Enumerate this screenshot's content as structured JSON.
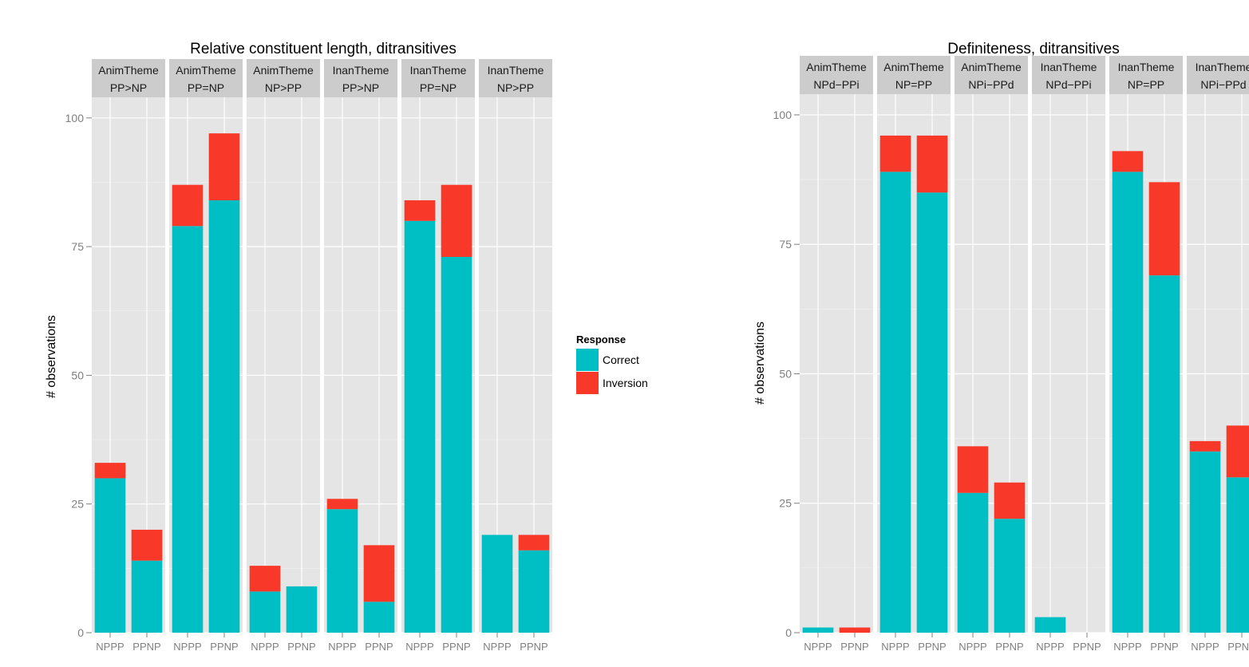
{
  "colors": {
    "correct": "#00BFC4",
    "inversion": "#F8392A",
    "panel_bg": "#E5E5E5",
    "strip_bg": "#CCCCCC",
    "grid": "#F2F2F2",
    "tick_text": "#7F7F7F"
  },
  "chart_data": [
    {
      "type": "bar",
      "stacked": true,
      "title": "Relative constituent length, ditransitives",
      "ylabel": "# observations",
      "xlabel": "",
      "ylim": [
        0,
        104
      ],
      "yticks": [
        0,
        25,
        50,
        75,
        100
      ],
      "x_tick_labels": [
        "NPPP",
        "PPNP"
      ],
      "series_names": [
        "Correct",
        "Inversion"
      ],
      "legend": {
        "title": "Response",
        "entries": [
          "Correct",
          "Inversion"
        ],
        "placement": "right"
      },
      "panels": [
        {
          "strip": [
            "AnimTheme",
            "PP>NP"
          ],
          "categories": [
            "NPPP",
            "PPNP"
          ],
          "correct": [
            30,
            14
          ],
          "inversion": [
            3,
            6
          ]
        },
        {
          "strip": [
            "AnimTheme",
            "PP=NP"
          ],
          "categories": [
            "NPPP",
            "PPNP"
          ],
          "correct": [
            79,
            84
          ],
          "inversion": [
            8,
            13
          ]
        },
        {
          "strip": [
            "AnimTheme",
            "NP>PP"
          ],
          "categories": [
            "NPPP",
            "PPNP"
          ],
          "correct": [
            8,
            9
          ],
          "inversion": [
            5,
            0
          ]
        },
        {
          "strip": [
            "InanTheme",
            "PP>NP"
          ],
          "categories": [
            "NPPP",
            "PPNP"
          ],
          "correct": [
            24,
            6
          ],
          "inversion": [
            2,
            11
          ]
        },
        {
          "strip": [
            "InanTheme",
            "PP=NP"
          ],
          "categories": [
            "NPPP",
            "PPNP"
          ],
          "correct": [
            80,
            73
          ],
          "inversion": [
            4,
            14
          ]
        },
        {
          "strip": [
            "InanTheme",
            "NP>PP"
          ],
          "categories": [
            "NPPP",
            "PPNP"
          ],
          "correct": [
            19,
            16
          ],
          "inversion": [
            0,
            3
          ]
        }
      ]
    },
    {
      "type": "bar",
      "stacked": true,
      "title": "Definiteness, ditransitives",
      "ylabel": "# observations",
      "xlabel": "",
      "ylim": [
        0,
        104
      ],
      "yticks": [
        0,
        25,
        50,
        75,
        100
      ],
      "x_tick_labels": [
        "NPPP",
        "PPNP"
      ],
      "series_names": [
        "Correct",
        "Inversion"
      ],
      "panels": [
        {
          "strip": [
            "AnimTheme",
            "NPd−PPi"
          ],
          "categories": [
            "NPPP",
            "PPNP"
          ],
          "correct": [
            1,
            0
          ],
          "inversion": [
            0,
            1
          ]
        },
        {
          "strip": [
            "AnimTheme",
            "NP=PP"
          ],
          "categories": [
            "NPPP",
            "PPNP"
          ],
          "correct": [
            89,
            85
          ],
          "inversion": [
            7,
            11
          ]
        },
        {
          "strip": [
            "AnimTheme",
            "NPi−PPd"
          ],
          "categories": [
            "NPPP",
            "PPNP"
          ],
          "correct": [
            27,
            22
          ],
          "inversion": [
            9,
            7
          ]
        },
        {
          "strip": [
            "InanTheme",
            "NPd−PPi"
          ],
          "categories": [
            "NPPP",
            "PPNP"
          ],
          "correct": [
            3,
            0
          ],
          "inversion": [
            0,
            0
          ]
        },
        {
          "strip": [
            "InanTheme",
            "NP=PP"
          ],
          "categories": [
            "NPPP",
            "PPNP"
          ],
          "correct": [
            89,
            69
          ],
          "inversion": [
            4,
            18
          ]
        },
        {
          "strip": [
            "InanTheme",
            "NPi−PPd"
          ],
          "categories": [
            "NPPP",
            "PPNP"
          ],
          "correct": [
            35,
            30
          ],
          "inversion": [
            2,
            10
          ]
        }
      ]
    }
  ]
}
